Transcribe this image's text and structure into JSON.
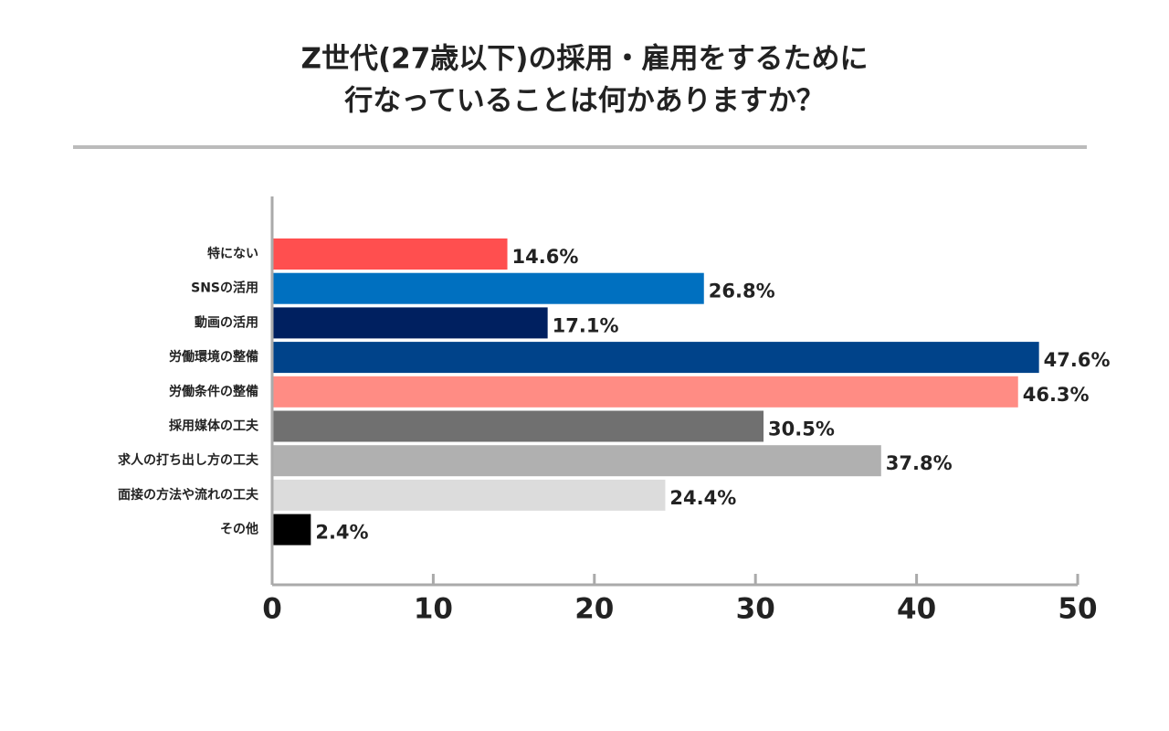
{
  "chart_data": {
    "type": "bar",
    "orientation": "horizontal",
    "title": [
      "Z世代(27歳以下)の採用・雇用をするために",
      "行なっていることは何かありますか？"
    ],
    "categories": [
      "特にない",
      "SNSの活用",
      "動画の活用",
      "労働環境の整備",
      "労働条件の整備",
      "採用媒体の工夫",
      "求人の打ち出し方の工夫",
      "面接の方法や流れの工夫",
      "その他"
    ],
    "values": [
      14.6,
      26.8,
      17.1,
      47.6,
      46.3,
      30.5,
      37.8,
      24.4,
      2.4
    ],
    "value_labels": [
      "14.6%",
      "26.8%",
      "17.1%",
      "47.6%",
      "46.3%",
      "30.5%",
      "37.8%",
      "24.4%",
      "2.4%"
    ],
    "colors": [
      "#ff4f4f",
      "#0070c0",
      "#002060",
      "#00438a",
      "#ff8c84",
      "#707070",
      "#b0b0b0",
      "#dcdcdc",
      "#000000"
    ],
    "xlim": [
      0,
      50
    ],
    "xticks": [
      0,
      10,
      20,
      30,
      40,
      50
    ],
    "grid": false
  }
}
